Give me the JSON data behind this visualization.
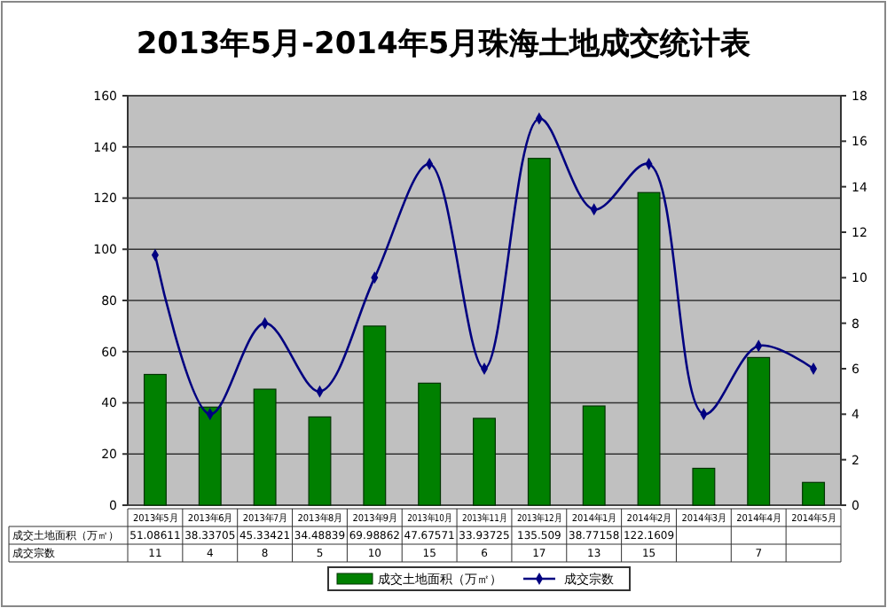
{
  "chart_data": {
    "type": "bar",
    "title": "2013年5月-2014年5月珠海土地成交统计表",
    "categories": [
      "2013年5月",
      "2013年6月",
      "2013年7月",
      "2013年8月",
      "2013年9月",
      "2013年10月",
      "2013年11月",
      "2013年12月",
      "2014年1月",
      "2014年2月",
      "2014年3月",
      "2014年4月",
      "2014年5月"
    ],
    "series": [
      {
        "name": "成交土地面积（万㎡）",
        "color": "#008000",
        "values": [
          51.08611,
          38.33705,
          45.33421,
          34.48839,
          69.98862,
          47.67571,
          33.93725,
          135.509,
          38.77158,
          122.1609,
          14.4,
          57.7,
          8.9
        ],
        "value_labels": [
          "51.08611",
          "38.33705",
          "45.33421",
          "34.48839",
          "69.98862",
          "47.67571",
          "33.93725",
          "135.509",
          "38.77158",
          "122.1609",
          null,
          null,
          null
        ]
      },
      {
        "name": "成交宗数",
        "type": "line",
        "axis": "y2",
        "color": "#000080",
        "marker": "diamond",
        "values": [
          11,
          4,
          8,
          5,
          10,
          15,
          6,
          17,
          13,
          15,
          4,
          7,
          6
        ],
        "value_labels": [
          "11",
          "4",
          "8",
          "5",
          "10",
          "15",
          "6",
          "17",
          "13",
          "15",
          null,
          "7",
          null
        ]
      }
    ],
    "ylim": [
      0,
      160
    ],
    "yticks": [
      0,
      20,
      40,
      60,
      80,
      100,
      120,
      140,
      160
    ],
    "y2lim": [
      0,
      18
    ],
    "y2ticks": [
      0,
      2,
      4,
      6,
      8,
      10,
      12,
      14,
      16,
      18
    ],
    "grid": "y",
    "legend": "bottom"
  }
}
